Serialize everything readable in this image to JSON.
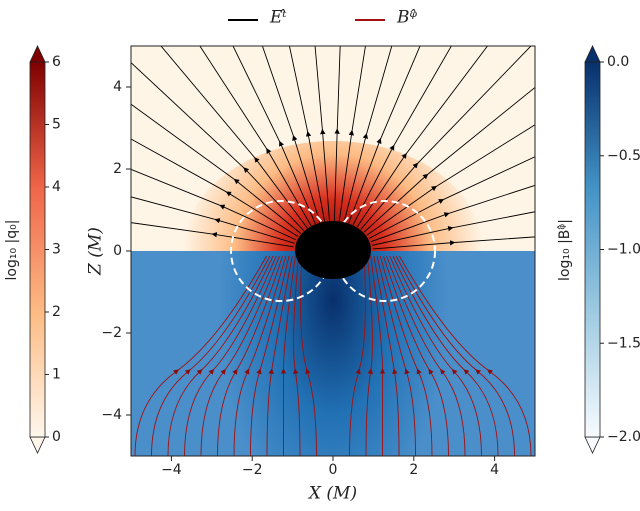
{
  "chart_data": {
    "type": "streamplot",
    "xlabel": "X (M)",
    "ylabel": "Z (M)",
    "xlim": [
      -5,
      5
    ],
    "ylim": [
      -5,
      5
    ],
    "xticks": [
      {
        "value": -4,
        "label": "−4"
      },
      {
        "value": -2,
        "label": "−2"
      },
      0,
      2,
      4
    ],
    "yticks": [
      {
        "value": -4,
        "label": "−4"
      },
      {
        "value": -2,
        "label": "−2"
      },
      0,
      2,
      4
    ],
    "series": [
      {
        "name": "Eᵗ̂",
        "color": "#000000"
      },
      {
        "name": "Bᵠ̂",
        "color": "#a01010"
      }
    ],
    "colorbars": [
      {
        "label": "log₁₀ |q₀|",
        "lim": [
          0,
          6
        ],
        "ticks": [
          0,
          1,
          2,
          3,
          4,
          5,
          6
        ],
        "colors": [
          "#fff7ec",
          "#fdbb84",
          "#ef6548",
          "#7f0000"
        ]
      },
      {
        "label": "log₁₀ |Bᵠ̂|",
        "lim": [
          -2,
          0
        ],
        "ticks": [
          {
            "value": -2,
            "label": "−2.0"
          },
          {
            "value": -1.5,
            "label": "−1.5"
          },
          {
            "value": -1,
            "label": "−1.0"
          },
          {
            "value": -0.5,
            "label": "−0.5"
          },
          {
            "value": 0,
            "label": "0.0"
          }
        ],
        "colors": [
          "#f7fbff",
          "#9ecae1",
          "#4292c6",
          "#08306b"
        ]
      }
    ]
  }
}
